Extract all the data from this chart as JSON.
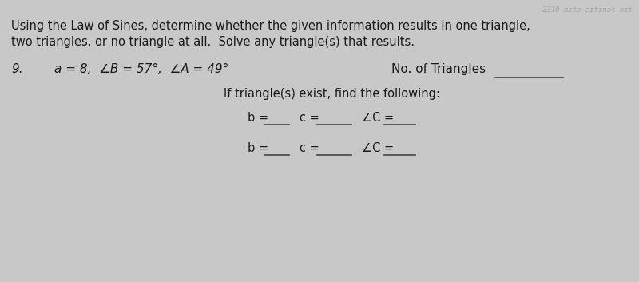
{
  "bg_color": "#c8c8c8",
  "paper_color": "#e8e6e0",
  "title_line1": "Using the Law of Sines, determine whether the given information results in one triangle,",
  "title_line2": "two triangles, or no triangle at all.  Solve any triangle(s) that results.",
  "problem_number": "9.",
  "given_info": "a = 8,  ∠B = 57°,  ∠A = 49°",
  "no_triangles_label": "No. of Triangles",
  "if_triangle_label": "If triangle(s) exist, find the following:",
  "row1_b": "b =",
  "row1_c": "c =",
  "row1_angle_c": "∠C =",
  "row2_b": "b =",
  "row2_c": "c =",
  "row2_angle_c": "∠C =",
  "underline_color": "#444444",
  "text_color": "#1a1a1a",
  "faded_text": "2310 əɪtə əɪtɪnət əɪt",
  "font_size_title": 10.5,
  "font_size_problem": 11,
  "font_size_labels": 10.5
}
